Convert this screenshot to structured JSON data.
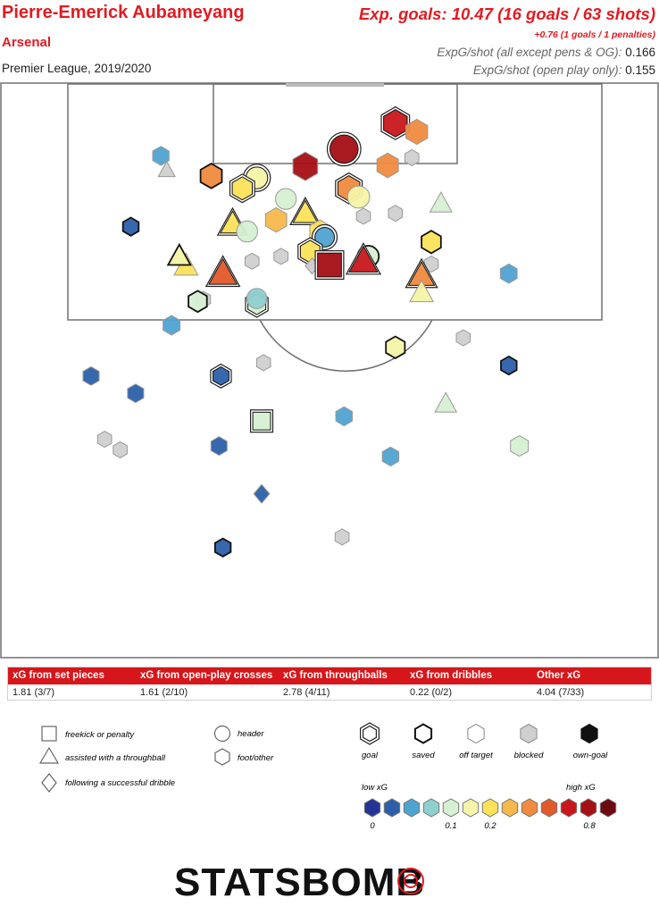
{
  "header": {
    "player": "Pierre-Emerick Aubameyang",
    "team": "Arsenal",
    "competition": "Premier League, 2019/2020",
    "xg_total": "Exp. goals: 10.47 (16 goals / 63 shots)",
    "xg_penalties": "+0.76 (1 goals / 1 penalties)",
    "rate1_label": "ExpG/shot (all except pens & OG):",
    "rate1_value": "0.166",
    "rate2_label": "ExpG/shot (open play only):",
    "rate2_value": "0.155"
  },
  "summary_table": {
    "columns": [
      "xG from set pieces",
      "xG from open-play crosses",
      "xG from throughballs",
      "xG from dribbles",
      "Other xG"
    ],
    "values": [
      "1.81 (3/7)",
      "1.61 (2/10)",
      "2.78 (4/11)",
      "0.22 (0/2)",
      "4.04 (7/33)"
    ]
  },
  "legend": {
    "shapes": [
      "freekick or penalty",
      "assisted with a throughball",
      "following a successful dribble",
      "header",
      "foot/other"
    ],
    "outcomes": [
      "goal",
      "saved",
      "off target",
      "blocked",
      "own-goal"
    ],
    "scale_low": "low xG",
    "scale_high": "high xG",
    "scale_ticks": [
      "0",
      "0.1",
      "0.2",
      "0.8"
    ],
    "scale_colors": [
      "#253494",
      "#2c5fa8",
      "#4fa3d1",
      "#8fd0cf",
      "#d6f0d2",
      "#f6f4a8",
      "#fde25a",
      "#f7b84c",
      "#f08a3e",
      "#e05a2b",
      "#c8171c",
      "#a50f15",
      "#6b0a10"
    ]
  },
  "logo": {
    "text": "STATSBOMB"
  },
  "chart_data": {
    "type": "scatter",
    "description_axes": "pitch coordinates in metres, x across the pitch 0-68 (left to right), y distance from the goal line 0-60",
    "xlim": [
      0,
      68
    ],
    "ylim": [
      0,
      60
    ],
    "points": [
      {
        "x": 40.8,
        "y": 4.1,
        "xg": 0.62,
        "shape": "hex",
        "outcome": "goal"
      },
      {
        "x": 35.5,
        "y": 6.8,
        "xg": 0.72,
        "shape": "circle",
        "outcome": "goal"
      },
      {
        "x": 43.0,
        "y": 5.0,
        "xg": 0.4,
        "shape": "hex",
        "outcome": "off"
      },
      {
        "x": 40.0,
        "y": 8.5,
        "xg": 0.36,
        "shape": "hex",
        "outcome": "off"
      },
      {
        "x": 42.5,
        "y": 7.7,
        "xg": 0.0,
        "shape": "hex",
        "outcome": "blocked"
      },
      {
        "x": 31.5,
        "y": 8.6,
        "xg": 0.75,
        "shape": "hex",
        "outcome": "off"
      },
      {
        "x": 16.6,
        "y": 7.5,
        "xg": 0.04,
        "shape": "hex",
        "outcome": "off"
      },
      {
        "x": 17.2,
        "y": 9.0,
        "xg": 0.0,
        "shape": "tri",
        "outcome": "blocked"
      },
      {
        "x": 21.8,
        "y": 9.6,
        "xg": 0.36,
        "shape": "hex",
        "outcome": "saved"
      },
      {
        "x": 26.5,
        "y": 9.8,
        "xg": 0.16,
        "shape": "circle",
        "outcome": "goal"
      },
      {
        "x": 25.0,
        "y": 10.9,
        "xg": 0.24,
        "shape": "hex",
        "outcome": "goal"
      },
      {
        "x": 29.5,
        "y": 12.0,
        "xg": 0.11,
        "shape": "circle",
        "outcome": "off"
      },
      {
        "x": 36.0,
        "y": 10.9,
        "xg": 0.42,
        "shape": "hex",
        "outcome": "goal"
      },
      {
        "x": 37.0,
        "y": 11.8,
        "xg": 0.18,
        "shape": "circle",
        "outcome": "off"
      },
      {
        "x": 45.5,
        "y": 12.5,
        "xg": 0.11,
        "shape": "tri",
        "outcome": "off"
      },
      {
        "x": 37.5,
        "y": 13.8,
        "xg": 0.0,
        "shape": "hex",
        "outcome": "blocked"
      },
      {
        "x": 40.8,
        "y": 13.5,
        "xg": 0.0,
        "shape": "hex",
        "outcome": "blocked"
      },
      {
        "x": 13.5,
        "y": 14.9,
        "xg": 0.02,
        "shape": "hex",
        "outcome": "saved"
      },
      {
        "x": 24.0,
        "y": 14.6,
        "xg": 0.24,
        "shape": "tri",
        "outcome": "goal"
      },
      {
        "x": 25.5,
        "y": 15.4,
        "xg": 0.12,
        "shape": "circle",
        "outcome": "off"
      },
      {
        "x": 28.5,
        "y": 14.2,
        "xg": 0.34,
        "shape": "hex",
        "outcome": "off"
      },
      {
        "x": 31.5,
        "y": 13.5,
        "xg": 0.24,
        "shape": "tri",
        "outcome": "goal"
      },
      {
        "x": 33.0,
        "y": 15.4,
        "xg": 0.24,
        "shape": "hex",
        "outcome": "off"
      },
      {
        "x": 33.5,
        "y": 16.0,
        "xg": 0.06,
        "shape": "circle",
        "outcome": "goal"
      },
      {
        "x": 32.0,
        "y": 17.5,
        "xg": 0.2,
        "shape": "hex",
        "outcome": "goal"
      },
      {
        "x": 32.2,
        "y": 19.0,
        "xg": 0.0,
        "shape": "diamond",
        "outcome": "blocked"
      },
      {
        "x": 34.0,
        "y": 18.9,
        "xg": 0.7,
        "shape": "square",
        "outcome": "goal"
      },
      {
        "x": 38.0,
        "y": 18.0,
        "xg": 0.13,
        "shape": "circle",
        "outcome": "saved"
      },
      {
        "x": 37.5,
        "y": 18.5,
        "xg": 0.6,
        "shape": "tri",
        "outcome": "goal"
      },
      {
        "x": 26.0,
        "y": 18.5,
        "xg": 0.0,
        "shape": "hex",
        "outcome": "blocked"
      },
      {
        "x": 29.0,
        "y": 18.0,
        "xg": 0.0,
        "shape": "hex",
        "outcome": "blocked"
      },
      {
        "x": 44.5,
        "y": 16.5,
        "xg": 0.2,
        "shape": "hex",
        "outcome": "saved"
      },
      {
        "x": 44.5,
        "y": 18.8,
        "xg": 0.0,
        "shape": "hex",
        "outcome": "blocked"
      },
      {
        "x": 19.2,
        "y": 19.0,
        "xg": 0.22,
        "shape": "tri",
        "outcome": "off"
      },
      {
        "x": 18.5,
        "y": 18.0,
        "xg": 0.14,
        "shape": "tri",
        "outcome": "saved"
      },
      {
        "x": 23.0,
        "y": 19.8,
        "xg": 0.55,
        "shape": "tri",
        "outcome": "goal"
      },
      {
        "x": 43.5,
        "y": 20.0,
        "xg": 0.36,
        "shape": "tri",
        "outcome": "goal"
      },
      {
        "x": 43.5,
        "y": 21.8,
        "xg": 0.19,
        "shape": "tri",
        "outcome": "off"
      },
      {
        "x": 52.5,
        "y": 19.8,
        "xg": 0.05,
        "shape": "hex",
        "outcome": "off"
      },
      {
        "x": 21.0,
        "y": 22.5,
        "xg": 0.0,
        "shape": "hex",
        "outcome": "blocked"
      },
      {
        "x": 20.4,
        "y": 22.7,
        "xg": 0.13,
        "shape": "hex",
        "outcome": "saved"
      },
      {
        "x": 26.5,
        "y": 23.0,
        "xg": 0.1,
        "shape": "hex",
        "outcome": "goal"
      },
      {
        "x": 26.5,
        "y": 22.4,
        "xg": 0.08,
        "shape": "circle",
        "outcome": "off"
      },
      {
        "x": 17.7,
        "y": 25.2,
        "xg": 0.06,
        "shape": "hex",
        "outcome": "off"
      },
      {
        "x": 47.8,
        "y": 26.5,
        "xg": 0.0,
        "shape": "hex",
        "outcome": "blocked"
      },
      {
        "x": 40.8,
        "y": 27.5,
        "xg": 0.16,
        "shape": "hex",
        "outcome": "saved"
      },
      {
        "x": 9.4,
        "y": 30.5,
        "xg": 0.03,
        "shape": "hex",
        "outcome": "off"
      },
      {
        "x": 22.8,
        "y": 30.5,
        "xg": 0.03,
        "shape": "hex",
        "outcome": "goal"
      },
      {
        "x": 27.2,
        "y": 29.1,
        "xg": 0.0,
        "shape": "hex",
        "outcome": "blocked"
      },
      {
        "x": 52.5,
        "y": 29.4,
        "xg": 0.02,
        "shape": "hex",
        "outcome": "saved"
      },
      {
        "x": 14.0,
        "y": 32.3,
        "xg": 0.03,
        "shape": "hex",
        "outcome": "off"
      },
      {
        "x": 46.0,
        "y": 33.4,
        "xg": 0.1,
        "shape": "tri",
        "outcome": "off"
      },
      {
        "x": 35.5,
        "y": 34.7,
        "xg": 0.04,
        "shape": "hex",
        "outcome": "off"
      },
      {
        "x": 27.0,
        "y": 35.2,
        "xg": 0.11,
        "shape": "square",
        "outcome": "goal"
      },
      {
        "x": 10.8,
        "y": 37.1,
        "xg": 0.0,
        "shape": "hex",
        "outcome": "blocked"
      },
      {
        "x": 12.4,
        "y": 38.2,
        "xg": 0.0,
        "shape": "hex",
        "outcome": "blocked"
      },
      {
        "x": 22.6,
        "y": 37.8,
        "xg": 0.03,
        "shape": "hex",
        "outcome": "off"
      },
      {
        "x": 53.6,
        "y": 37.8,
        "xg": 0.1,
        "shape": "hex",
        "outcome": "off"
      },
      {
        "x": 40.3,
        "y": 38.9,
        "xg": 0.04,
        "shape": "hex",
        "outcome": "off"
      },
      {
        "x": 27.0,
        "y": 42.8,
        "xg": 0.03,
        "shape": "diamond",
        "outcome": "off"
      },
      {
        "x": 35.3,
        "y": 47.3,
        "xg": 0.0,
        "shape": "hex",
        "outcome": "blocked"
      },
      {
        "x": 23.0,
        "y": 48.4,
        "xg": 0.02,
        "shape": "hex",
        "outcome": "saved"
      }
    ]
  }
}
